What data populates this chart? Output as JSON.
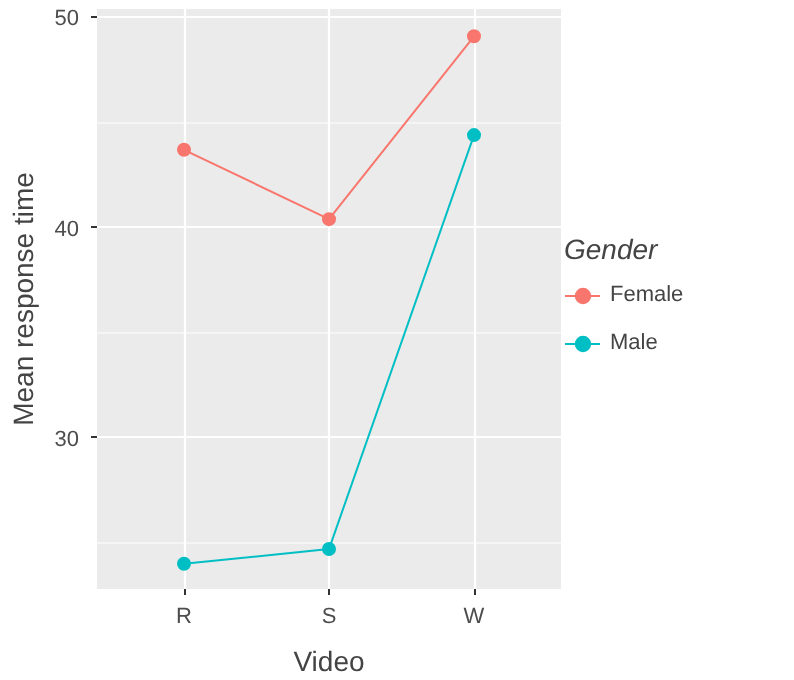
{
  "chart_data": {
    "type": "line",
    "xlabel": "Video",
    "ylabel": "Mean response time",
    "legend_title": "Gender",
    "categories": [
      "R",
      "S",
      "W"
    ],
    "series": [
      {
        "name": "Female",
        "color": "#f8766d",
        "values": [
          43.7,
          40.4,
          49.1
        ]
      },
      {
        "name": "Male",
        "color": "#00bfc4",
        "values": [
          24.0,
          24.7,
          44.4
        ]
      }
    ],
    "ylim": [
      22.8,
      50.4
    ],
    "yticks": [
      30,
      40,
      50
    ],
    "grid": true,
    "legend": "right",
    "marker": "circle",
    "line_style": "solid"
  }
}
